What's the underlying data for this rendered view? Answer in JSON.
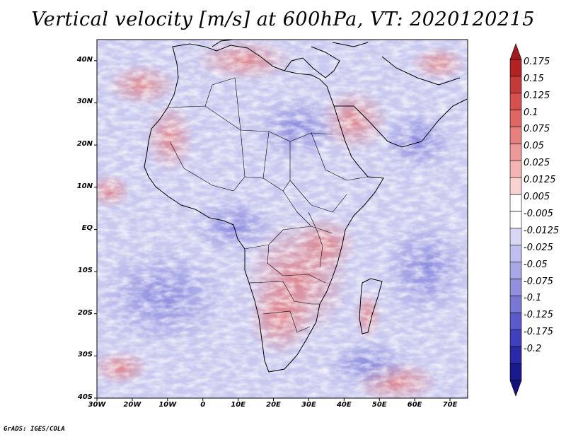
{
  "title": "Vertical velocity [m/s] at 600hPa, VT: 2020120215",
  "credit": "GrADS: IGES/COLA",
  "map": {
    "lat_range": [
      -40,
      45
    ],
    "lon_range": [
      -30,
      75
    ],
    "lat_ticks": [
      "40N",
      "30N",
      "20N",
      "10N",
      "EQ",
      "10S",
      "20S",
      "30S",
      "40S"
    ],
    "lat_values": [
      40,
      30,
      20,
      10,
      0,
      -10,
      -20,
      -30,
      -40
    ],
    "lon_ticks": [
      "30W",
      "20W",
      "10W",
      "0",
      "10E",
      "20E",
      "30E",
      "40E",
      "50E",
      "60E",
      "70E"
    ],
    "lon_values": [
      -30,
      -20,
      -10,
      0,
      10,
      20,
      30,
      40,
      50,
      60,
      70
    ]
  },
  "colorbar": {
    "labels": [
      "0.175",
      "0.15",
      "0.125",
      "0.1",
      "0.075",
      "0.05",
      "0.025",
      "0.0125",
      "0.005",
      "-0.005",
      "-0.0125",
      "-0.025",
      "-0.05",
      "-0.075",
      "-0.1",
      "-0.125",
      "-0.175",
      "-0.2"
    ],
    "colors": [
      "#b22222",
      "#c43a3a",
      "#d65050",
      "#e06666",
      "#e88080",
      "#ee9999",
      "#f4b4b4",
      "#f9d2d2",
      "#ffffff",
      "#ffffff",
      "#d8d8f4",
      "#c0c0ee",
      "#a8a8e6",
      "#9090de",
      "#7878d4",
      "#5a5acb",
      "#4040bf",
      "#2a2aa8",
      "#1a1a90"
    ]
  }
}
